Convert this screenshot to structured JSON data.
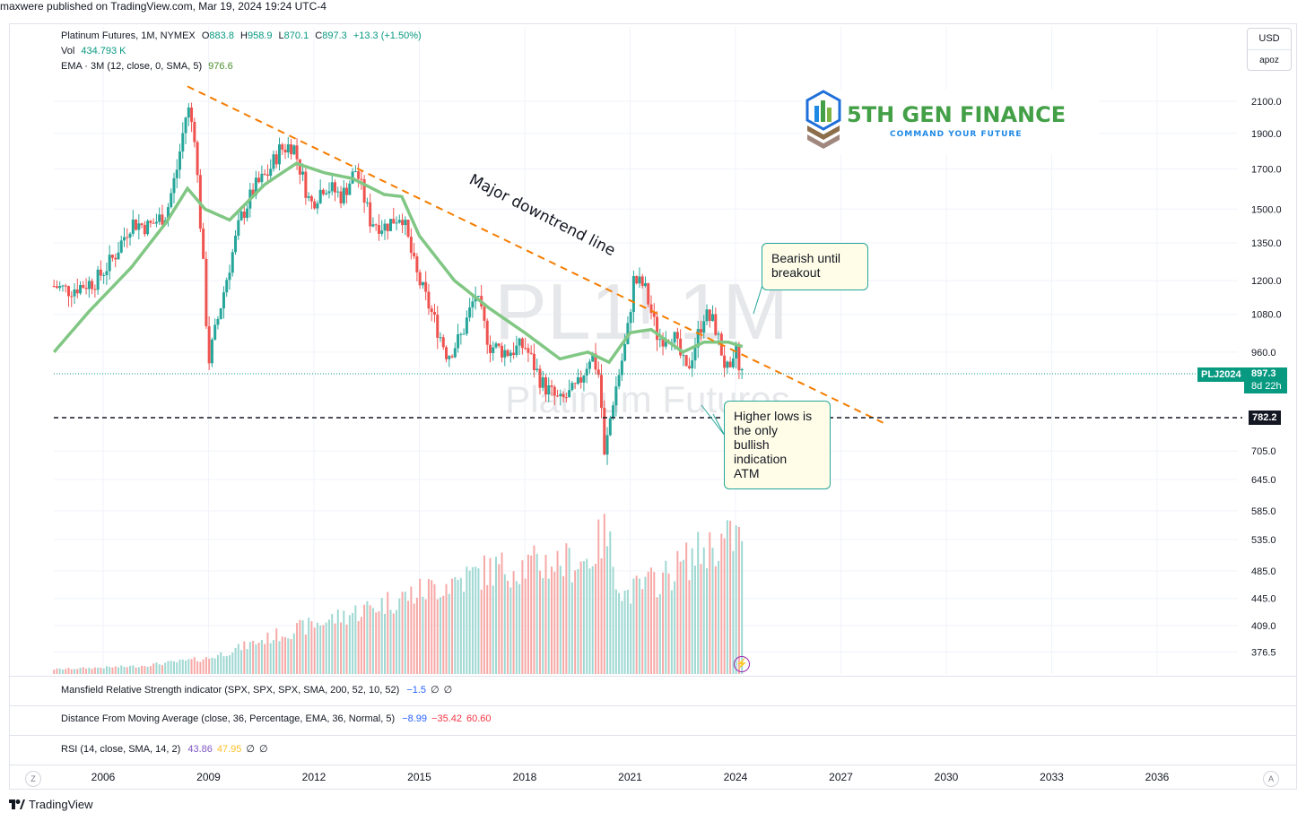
{
  "publisher_line": "maxwere published on TradingView.com, Mar 19, 2024 19:24 UTC-4",
  "legend": {
    "symbol": "Platinum Futures, 1M, NYMEX",
    "o_label": "O",
    "o": "883.8",
    "h_label": "H",
    "h": "958.9",
    "l_label": "L",
    "l": "870.1",
    "c_label": "C",
    "c": "897.3",
    "change": "+13.3 (+1.50%)",
    "vol_label": "Vol",
    "vol": "434.793 K",
    "ema_label": "EMA · 3M (12, close, 0, SMA, 5)",
    "ema": "976.6"
  },
  "unit_box": {
    "currency": "USD",
    "scale": "apoz"
  },
  "watermark": {
    "symbol": "PL1! 1M",
    "name": "Platinum Futures"
  },
  "logo": {
    "name": "5TH GEN FINANCE",
    "tagline": "COMMAND YOUR FUTURE"
  },
  "annotations": {
    "trendline_label": "Major downtrend line",
    "bearish": [
      "Bearish until",
      "breakout"
    ],
    "higher_lows": [
      "Higher lows is",
      "the only",
      "bullish",
      "indication",
      "ATM"
    ]
  },
  "price_tags": {
    "contract": "PLJ2024",
    "last": "897.3",
    "countdown": "8d 22h",
    "hline": "782.2"
  },
  "indicators": [
    {
      "name": "Mansfield Relative Strength indicator (SPX, SPX, SPX, SMA, 200, 52, 10, 52)",
      "values": [
        "−1.5",
        "∅",
        "∅"
      ],
      "colors": [
        "#2962ff",
        "#131722",
        "#131722"
      ]
    },
    {
      "name": "Distance From Moving Average (close, 36, Percentage, EMA, 36, Normal, 5)",
      "values": [
        "−8.99",
        "−35.42",
        "60.60"
      ],
      "colors": [
        "#2962ff",
        "#f23645",
        "#f23645"
      ]
    },
    {
      "name": "RSI (14, close, SMA, 14, 2)",
      "values": [
        "43.86",
        "47.95",
        "∅",
        "∅"
      ],
      "colors": [
        "#7e57c2",
        "#fbc02d",
        "#131722",
        "#131722"
      ]
    }
  ],
  "axis_controls": {
    "left": "Z",
    "right": "A"
  },
  "footer": {
    "brand": "TradingView"
  },
  "colors": {
    "up": "#26a69a",
    "down": "#ef5350",
    "ema": "#81c784",
    "trend": "#f57c00",
    "last_price": "#089981",
    "hline": "#131722"
  },
  "chart_data": {
    "type": "candlestick",
    "title": "Platinum Futures, 1M, NYMEX",
    "scale": "log",
    "y_ticks": [
      2100.0,
      1900.0,
      1700.0,
      1500.0,
      1350.0,
      1200.0,
      1080.0,
      960.0,
      705.0,
      645.0,
      585.0,
      535.0,
      485.0,
      445.0,
      409.0,
      376.5
    ],
    "x_ticks": [
      2006,
      2009,
      2012,
      2015,
      2018,
      2021,
      2024,
      2027,
      2030,
      2033,
      2036
    ],
    "close_path": [
      {
        "x": 2004.6,
        "y": 1180
      },
      {
        "x": 2005.0,
        "y": 1165
      },
      {
        "x": 2005.8,
        "y": 1200
      },
      {
        "x": 2006.3,
        "y": 1290
      },
      {
        "x": 2006.8,
        "y": 1440
      },
      {
        "x": 2007.3,
        "y": 1420
      },
      {
        "x": 2007.8,
        "y": 1480
      },
      {
        "x": 2008.1,
        "y": 1700
      },
      {
        "x": 2008.4,
        "y": 2070
      },
      {
        "x": 2008.6,
        "y": 1900
      },
      {
        "x": 2008.85,
        "y": 1250
      },
      {
        "x": 2009.0,
        "y": 930
      },
      {
        "x": 2009.5,
        "y": 1200
      },
      {
        "x": 2009.9,
        "y": 1450
      },
      {
        "x": 2010.3,
        "y": 1600
      },
      {
        "x": 2010.7,
        "y": 1680
      },
      {
        "x": 2011.0,
        "y": 1800
      },
      {
        "x": 2011.4,
        "y": 1840
      },
      {
        "x": 2011.9,
        "y": 1520
      },
      {
        "x": 2012.3,
        "y": 1620
      },
      {
        "x": 2012.8,
        "y": 1560
      },
      {
        "x": 2013.2,
        "y": 1700
      },
      {
        "x": 2013.6,
        "y": 1450
      },
      {
        "x": 2014.0,
        "y": 1420
      },
      {
        "x": 2014.5,
        "y": 1480
      },
      {
        "x": 2014.9,
        "y": 1230
      },
      {
        "x": 2015.3,
        "y": 1100
      },
      {
        "x": 2015.8,
        "y": 950
      },
      {
        "x": 2016.2,
        "y": 1010
      },
      {
        "x": 2016.6,
        "y": 1150
      },
      {
        "x": 2017.0,
        "y": 980
      },
      {
        "x": 2017.5,
        "y": 960
      },
      {
        "x": 2018.0,
        "y": 980
      },
      {
        "x": 2018.5,
        "y": 870
      },
      {
        "x": 2019.0,
        "y": 820
      },
      {
        "x": 2019.5,
        "y": 860
      },
      {
        "x": 2019.9,
        "y": 960
      },
      {
        "x": 2020.15,
        "y": 880
      },
      {
        "x": 2020.25,
        "y": 680
      },
      {
        "x": 2020.5,
        "y": 820
      },
      {
        "x": 2020.9,
        "y": 1000
      },
      {
        "x": 2021.1,
        "y": 1200
      },
      {
        "x": 2021.4,
        "y": 1180
      },
      {
        "x": 2021.8,
        "y": 1000
      },
      {
        "x": 2022.2,
        "y": 1020
      },
      {
        "x": 2022.6,
        "y": 900
      },
      {
        "x": 2022.9,
        "y": 1000
      },
      {
        "x": 2023.1,
        "y": 1080
      },
      {
        "x": 2023.4,
        "y": 1050
      },
      {
        "x": 2023.7,
        "y": 920
      },
      {
        "x": 2023.9,
        "y": 880
      },
      {
        "x": 2024.0,
        "y": 1000
      },
      {
        "x": 2024.1,
        "y": 900
      },
      {
        "x": 2024.2,
        "y": 897.3
      }
    ],
    "ema_path": [
      {
        "x": 2004.6,
        "y": 960
      },
      {
        "x": 2005.6,
        "y": 1090
      },
      {
        "x": 2006.8,
        "y": 1250
      },
      {
        "x": 2007.8,
        "y": 1440
      },
      {
        "x": 2008.4,
        "y": 1600
      },
      {
        "x": 2008.9,
        "y": 1500
      },
      {
        "x": 2009.6,
        "y": 1450
      },
      {
        "x": 2010.6,
        "y": 1620
      },
      {
        "x": 2011.5,
        "y": 1730
      },
      {
        "x": 2012.3,
        "y": 1680
      },
      {
        "x": 2013.1,
        "y": 1650
      },
      {
        "x": 2014.0,
        "y": 1570
      },
      {
        "x": 2014.5,
        "y": 1560
      },
      {
        "x": 2015.0,
        "y": 1380
      },
      {
        "x": 2016.0,
        "y": 1200
      },
      {
        "x": 2017.0,
        "y": 1100
      },
      {
        "x": 2018.0,
        "y": 1020
      },
      {
        "x": 2019.0,
        "y": 940
      },
      {
        "x": 2019.8,
        "y": 960
      },
      {
        "x": 2020.4,
        "y": 930
      },
      {
        "x": 2021.0,
        "y": 1020
      },
      {
        "x": 2021.6,
        "y": 1030
      },
      {
        "x": 2022.5,
        "y": 960
      },
      {
        "x": 2023.1,
        "y": 990
      },
      {
        "x": 2023.8,
        "y": 990
      },
      {
        "x": 2024.2,
        "y": 976.6
      }
    ],
    "trendline": {
      "start": {
        "x": 2008.4,
        "y": 2200
      },
      "end": {
        "x": 2028.2,
        "y": 770
      }
    },
    "horizontal_line": 782.2,
    "last_price": 897.3,
    "volume_profile": [
      {
        "x": 2004.6,
        "v": 0.03
      },
      {
        "x": 2007.0,
        "v": 0.05
      },
      {
        "x": 2009.0,
        "v": 0.1
      },
      {
        "x": 2011.0,
        "v": 0.25
      },
      {
        "x": 2013.0,
        "v": 0.38
      },
      {
        "x": 2015.0,
        "v": 0.52
      },
      {
        "x": 2017.0,
        "v": 0.66
      },
      {
        "x": 2018.5,
        "v": 0.7
      },
      {
        "x": 2019.8,
        "v": 0.72
      },
      {
        "x": 2020.3,
        "v": 0.9
      },
      {
        "x": 2020.8,
        "v": 0.5
      },
      {
        "x": 2022.0,
        "v": 0.62
      },
      {
        "x": 2023.0,
        "v": 0.78
      },
      {
        "x": 2024.1,
        "v": 0.88
      },
      {
        "x": 2024.2,
        "v": 0.74
      }
    ]
  }
}
